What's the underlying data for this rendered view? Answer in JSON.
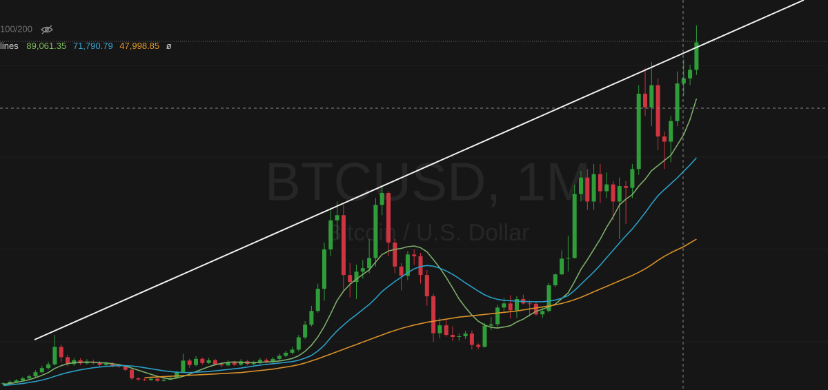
{
  "chart_data": {
    "type": "candlestick",
    "watermark": "BTCUSD, 1M",
    "subtitle": "Bitcoin / U.S. Dollar",
    "header": "100/200",
    "legend_label": "lines",
    "legend_suffix": "ø",
    "ylim": [
      3900,
      117900
    ],
    "up_color": "#2f9e3a",
    "down_color": "#cf3441",
    "open": [
      5600,
      5900,
      6300,
      6700,
      7300,
      7900,
      9100,
      10300,
      11400,
      16500,
      13500,
      11500,
      12600,
      11700,
      12200,
      11800,
      11200,
      11600,
      11000,
      10800,
      9800,
      7300,
      7000,
      6800,
      7200,
      6600,
      6900,
      7400,
      9000,
      12500,
      11200,
      13000,
      11800,
      12600,
      11400,
      11100,
      12000,
      11300,
      12300,
      11500,
      11800,
      12700,
      12100,
      13000,
      13900,
      14800,
      15700,
      19300,
      23000,
      27000,
      33500,
      45000,
      53500,
      55000,
      37500,
      35500,
      38500,
      39500,
      42500,
      58000,
      61500,
      47000,
      40000,
      37300,
      43500,
      43000,
      37500,
      31300,
      20500,
      22800,
      20000,
      19400,
      19600,
      20400,
      17100,
      16500,
      22700,
      23100,
      28000,
      29200,
      27200,
      30500,
      29200,
      29100,
      26000,
      27000,
      34500,
      37700,
      42300,
      42500,
      61200,
      66000,
      59000,
      67000,
      62000,
      64000,
      59000,
      63500,
      63000,
      68500,
      90500,
      86500,
      93000,
      78000,
      76500,
      82500,
      93500,
      95000,
      97500
    ],
    "high": [
      6200,
      6700,
      7100,
      7800,
      8400,
      9700,
      11000,
      12200,
      20000,
      17200,
      14200,
      13300,
      13200,
      12900,
      12800,
      12300,
      12200,
      12000,
      11600,
      11200,
      10100,
      7600,
      7300,
      7600,
      7500,
      7300,
      7800,
      9500,
      14500,
      13000,
      13800,
      13400,
      13300,
      13000,
      12000,
      12600,
      12400,
      12900,
      12700,
      12400,
      13300,
      13200,
      13600,
      14500,
      15400,
      16500,
      20000,
      24000,
      28500,
      35000,
      47000,
      57000,
      59000,
      58000,
      41000,
      40500,
      42000,
      48000,
      60000,
      63500,
      62000,
      48000,
      41000,
      44500,
      45000,
      44000,
      39000,
      32000,
      25000,
      24500,
      22500,
      20500,
      21200,
      21300,
      17500,
      23500,
      25200,
      28800,
      30900,
      31600,
      31400,
      31800,
      30200,
      29600,
      28000,
      35200,
      38000,
      44700,
      49000,
      63900,
      68000,
      68500,
      70000,
      70000,
      67500,
      65000,
      66000,
      65000,
      70000,
      93000,
      98000,
      99800,
      95000,
      79500,
      84000,
      97000,
      100500,
      99000,
      110500
    ],
    "low": [
      5300,
      5600,
      6000,
      6400,
      7000,
      7600,
      8800,
      9900,
      11000,
      12000,
      10800,
      11000,
      11200,
      11300,
      11300,
      10700,
      10800,
      10500,
      10300,
      9400,
      6900,
      6600,
      6500,
      6600,
      6300,
      6400,
      6700,
      7200,
      8900,
      10400,
      10800,
      11300,
      11500,
      11000,
      10600,
      10800,
      10900,
      11000,
      11100,
      11200,
      11500,
      11700,
      11800,
      12600,
      13500,
      14300,
      15200,
      18800,
      22500,
      26500,
      30000,
      43000,
      48000,
      33000,
      31000,
      30500,
      36500,
      38000,
      40000,
      55000,
      43000,
      38000,
      33000,
      36000,
      40500,
      35000,
      28500,
      18000,
      19000,
      19500,
      18200,
      18300,
      18800,
      15700,
      15800,
      16300,
      21400,
      22000,
      26900,
      24800,
      25000,
      28900,
      25400,
      25600,
      24900,
      26600,
      34000,
      37600,
      38500,
      42300,
      59000,
      56500,
      56600,
      58500,
      60000,
      53500,
      48000,
      52500,
      60000,
      66800,
      84000,
      81000,
      74000,
      68500,
      70500,
      81000,
      90000,
      93000,
      96000
    ],
    "close": [
      5900,
      6300,
      6700,
      7300,
      7900,
      9100,
      10300,
      11400,
      16500,
      13500,
      11500,
      12600,
      11700,
      12200,
      11800,
      11200,
      11600,
      11000,
      10800,
      9800,
      7300,
      7000,
      6800,
      7200,
      6600,
      6900,
      7400,
      9000,
      12500,
      11200,
      13000,
      11800,
      12600,
      11400,
      11100,
      12000,
      11300,
      12300,
      11500,
      11800,
      12700,
      12100,
      13000,
      13900,
      14800,
      15700,
      19300,
      23000,
      27000,
      33500,
      45000,
      53500,
      55000,
      37500,
      35500,
      38500,
      39500,
      42500,
      58000,
      61500,
      47000,
      40000,
      37300,
      43500,
      43000,
      37500,
      31300,
      20500,
      22800,
      20000,
      19400,
      19600,
      20400,
      17100,
      16500,
      22700,
      23100,
      28000,
      29200,
      27200,
      30500,
      29200,
      29100,
      26000,
      27000,
      34500,
      37700,
      42300,
      42500,
      61200,
      66000,
      59000,
      67000,
      62000,
      64000,
      59000,
      63500,
      63000,
      68500,
      90500,
      86500,
      93000,
      78000,
      76500,
      82500,
      93500,
      95000,
      97500,
      105500
    ],
    "series": [
      {
        "color": "#7fae6a",
        "value_label": "89,061.35",
        "values": [
          5500,
          5800,
          6100,
          6500,
          6900,
          7500,
          8200,
          9000,
          10200,
          11000,
          11600,
          11900,
          12000,
          12100,
          12000,
          11900,
          11800,
          11600,
          11300,
          10900,
          10300,
          9700,
          9100,
          8500,
          7900,
          7400,
          7100,
          7400,
          7900,
          8500,
          9300,
          10000,
          10700,
          11300,
          11700,
          12000,
          12100,
          12000,
          11900,
          11900,
          12000,
          12100,
          12200,
          12400,
          12700,
          13100,
          13900,
          15200,
          17000,
          19400,
          22500,
          26200,
          30100,
          32800,
          34800,
          36300,
          37700,
          39000,
          41300,
          43500,
          44500,
          45000,
          45300,
          45800,
          46000,
          45500,
          44300,
          42000,
          39600,
          36800,
          33700,
          30500,
          28000,
          25800,
          24000,
          22900,
          22200,
          22000,
          22300,
          22700,
          23800,
          24600,
          25800,
          26900,
          27500,
          28200,
          29000,
          30600,
          32300,
          35600,
          39200,
          42000,
          45000,
          48000,
          51500,
          54500,
          58000,
          59700,
          61000,
          63500,
          65500,
          68000,
          69500,
          71000,
          72500,
          75500,
          78500,
          83000,
          89061.35
        ]
      },
      {
        "color": "#2b9fc7",
        "value_label": "71,790.79",
        "values": [
          5200,
          5400,
          5600,
          5800,
          6100,
          6400,
          6800,
          7300,
          7900,
          8500,
          9000,
          9400,
          9800,
          10100,
          10400,
          10600,
          10800,
          10900,
          11000,
          11000,
          10900,
          10700,
          10400,
          10100,
          9800,
          9500,
          9300,
          9100,
          9000,
          9000,
          9100,
          9200,
          9300,
          9500,
          9700,
          9900,
          10100,
          10300,
          10600,
          10900,
          11200,
          11400,
          11600,
          11800,
          12000,
          12200,
          12600,
          13200,
          14000,
          15300,
          17000,
          19200,
          21200,
          22900,
          24500,
          25900,
          27400,
          28900,
          30700,
          32700,
          34200,
          35600,
          36900,
          38200,
          39300,
          40000,
          40300,
          40100,
          39500,
          38700,
          37700,
          36500,
          35200,
          34000,
          32800,
          31700,
          30900,
          30400,
          30100,
          30000,
          29900,
          29800,
          29700,
          29700,
          29700,
          29900,
          30200,
          30700,
          31500,
          33000,
          34800,
          36600,
          38400,
          40400,
          42600,
          44700,
          46900,
          49000,
          51000,
          53300,
          55700,
          58300,
          60700,
          62500,
          64200,
          65900,
          67800,
          69700,
          71790.79
        ]
      },
      {
        "color": "#d9912b",
        "value_label": "47,998.85",
        "values": [
          null,
          null,
          null,
          null,
          null,
          null,
          null,
          null,
          null,
          null,
          null,
          null,
          null,
          null,
          null,
          null,
          null,
          null,
          null,
          null,
          null,
          null,
          7500,
          7600,
          7700,
          7800,
          7900,
          8000,
          8100,
          8200,
          8300,
          8400,
          8500,
          8600,
          8700,
          8800,
          8900,
          9000,
          9200,
          9400,
          9600,
          9800,
          10000,
          10300,
          10600,
          10900,
          11300,
          11800,
          12400,
          13000,
          13700,
          14400,
          15100,
          15800,
          16500,
          17200,
          17900,
          18600,
          19300,
          20000,
          20700,
          21300,
          21900,
          22400,
          22900,
          23300,
          23700,
          24000,
          24300,
          24600,
          24900,
          25200,
          25400,
          25600,
          25800,
          26000,
          26200,
          26400,
          26600,
          26800,
          27000,
          27300,
          27600,
          27900,
          28200,
          28500,
          28800,
          29200,
          29700,
          30300,
          31000,
          31800,
          32600,
          33400,
          34200,
          35000,
          35800,
          36600,
          37400,
          38300,
          39300,
          40500,
          41800,
          43000,
          44000,
          44900,
          45800,
          46900,
          47998.85
        ]
      }
    ]
  }
}
